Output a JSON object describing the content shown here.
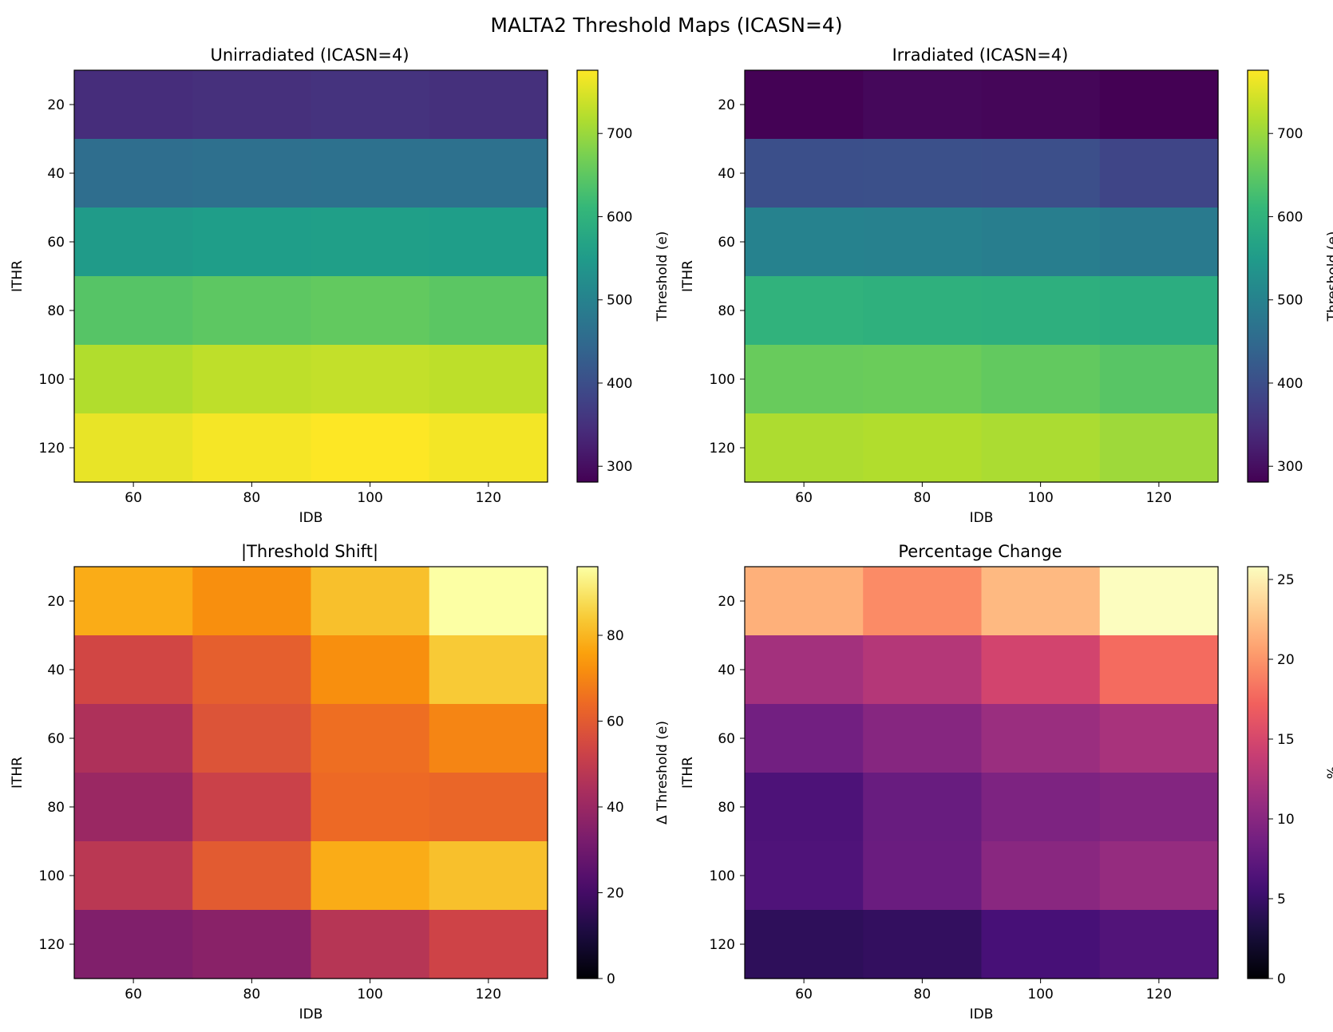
{
  "figure": {
    "title": "MALTA2 Threshold Maps (ICASN=4)"
  },
  "chart_data": [
    {
      "type": "heatmap",
      "title": "Unirradiated (ICASN=4)",
      "xlabel": "IDB",
      "ylabel": "ITHR",
      "x": [
        60,
        80,
        100,
        120
      ],
      "y": [
        20,
        40,
        60,
        80,
        100,
        120
      ],
      "xlim": [
        50,
        130
      ],
      "ylim": [
        130,
        10
      ],
      "xticks": [
        60,
        80,
        100,
        120
      ],
      "yticks": [
        20,
        40,
        60,
        80,
        100,
        120
      ],
      "colormap": "viridis",
      "colorbar": {
        "label": "Threshold (e)",
        "range": [
          281,
          776
        ],
        "ticks": [
          300,
          400,
          500,
          600,
          700
        ]
      },
      "values": [
        [
          345,
          349,
          354,
          350
        ],
        [
          458,
          462,
          466,
          465
        ],
        [
          551,
          556,
          558,
          556
        ],
        [
          643,
          650,
          654,
          648
        ],
        [
          718,
          728,
          732,
          727
        ],
        [
          760,
          770,
          776,
          768
        ]
      ]
    },
    {
      "type": "heatmap",
      "title": "Irradiated (ICASN=4)",
      "xlabel": "IDB",
      "ylabel": "ITHR",
      "x": [
        60,
        80,
        100,
        120
      ],
      "y": [
        20,
        40,
        60,
        80,
        100,
        120
      ],
      "xlim": [
        50,
        130
      ],
      "ylim": [
        130,
        10
      ],
      "xticks": [
        60,
        80,
        100,
        120
      ],
      "yticks": [
        20,
        40,
        60,
        80,
        100,
        120
      ],
      "colormap": "viridis",
      "colorbar": {
        "label": "Threshold (e)",
        "range": [
          281,
          776
        ],
        "ticks": [
          300,
          400,
          500,
          600,
          700
        ]
      },
      "values": [
        [
          283,
          291,
          288,
          281
        ],
        [
          402,
          404,
          401,
          385
        ],
        [
          500,
          498,
          492,
          484
        ],
        [
          600,
          596,
          594,
          588
        ],
        [
          660,
          662,
          654,
          645
        ],
        [
          715,
          718,
          713,
          703
        ]
      ]
    },
    {
      "type": "heatmap",
      "title": "|Threshold Shift|",
      "xlabel": "IDB",
      "ylabel": "ITHR",
      "x": [
        60,
        80,
        100,
        120
      ],
      "y": [
        20,
        40,
        60,
        80,
        100,
        120
      ],
      "xlim": [
        50,
        130
      ],
      "ylim": [
        130,
        10
      ],
      "xticks": [
        60,
        80,
        100,
        120
      ],
      "yticks": [
        20,
        40,
        60,
        80,
        100,
        120
      ],
      "colormap": "inferno",
      "colorbar": {
        "label": "Δ Threshold (e)",
        "range": [
          0,
          96
        ],
        "ticks": [
          0,
          20,
          40,
          60,
          80
        ]
      },
      "values": [
        [
          78,
          72,
          82,
          96
        ],
        [
          54,
          61,
          72,
          84
        ],
        [
          45,
          58,
          65,
          70
        ],
        [
          40,
          52,
          64,
          63
        ],
        [
          48,
          60,
          78,
          82
        ],
        [
          34,
          36,
          47,
          53
        ]
      ]
    },
    {
      "type": "heatmap",
      "title": "Percentage Change",
      "xlabel": "IDB",
      "ylabel": "ITHR",
      "x": [
        60,
        80,
        100,
        120
      ],
      "y": [
        20,
        40,
        60,
        80,
        100,
        120
      ],
      "xlim": [
        50,
        130
      ],
      "ylim": [
        130,
        10
      ],
      "xticks": [
        60,
        80,
        100,
        120
      ],
      "yticks": [
        20,
        40,
        60,
        80,
        100,
        120
      ],
      "colormap": "magma",
      "colorbar": {
        "label": "%",
        "range": [
          0,
          25.8
        ],
        "ticks": [
          0,
          5,
          10,
          15,
          20,
          25
        ]
      },
      "values": [
        [
          21.5,
          19.5,
          22.0,
          25.8
        ],
        [
          11.8,
          12.8,
          14.7,
          17.8
        ],
        [
          8.6,
          9.9,
          11.2,
          12.1
        ],
        [
          6.3,
          8.0,
          9.3,
          9.7
        ],
        [
          6.4,
          8.1,
          10.1,
          10.9
        ],
        [
          4.3,
          4.6,
          5.9,
          6.6
        ]
      ]
    }
  ]
}
